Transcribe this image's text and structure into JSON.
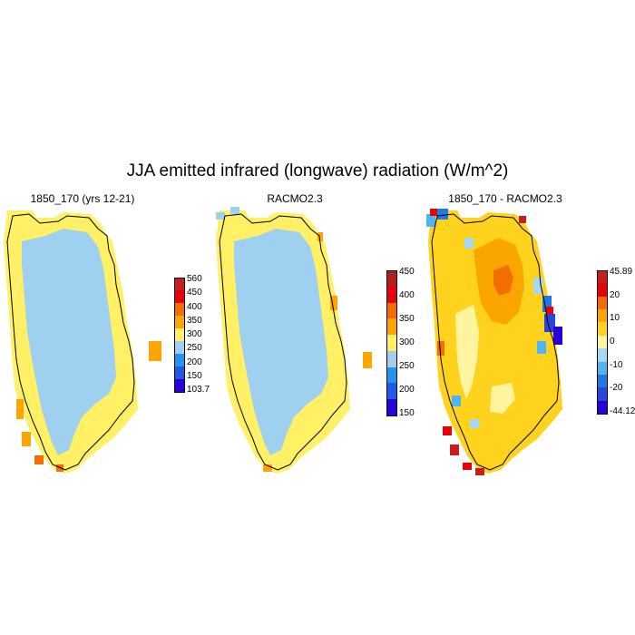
{
  "title": "JJA emitted infrared (longwave) radiation (W/m^2)",
  "panels": [
    {
      "title": "1850_170 (yrs 12-21)",
      "colorbar": {
        "labels": [
          "560",
          "450",
          "400",
          "350",
          "300",
          "250",
          "200",
          "150",
          "103.7"
        ],
        "colors": [
          "#c81e1e",
          "#e8000b",
          "#f46d00",
          "#faa500",
          "#fff066",
          "#9fd0f0",
          "#1e96f0",
          "#1e5ae6",
          "#2800dc"
        ]
      }
    },
    {
      "title": "RACMO2.3",
      "colorbar": {
        "labels": [
          "450",
          "400",
          "350",
          "300",
          "250",
          "200",
          "150"
        ],
        "colors": [
          "#b41e1e",
          "#e8000b",
          "#f46d00",
          "#faa500",
          "#fff066",
          "#9fd0f0",
          "#1e96f0",
          "#1e5ae6",
          "#2800dc"
        ]
      }
    },
    {
      "title": "1850_170 - RACMO2.3",
      "colorbar": {
        "labels": [
          "45.89",
          "20",
          "10",
          "0",
          "-10",
          "-20",
          "-44.12"
        ],
        "colors": [
          "#c81e1e",
          "#e8000b",
          "#f46d00",
          "#faa500",
          "#ffd21e",
          "#fff5a0",
          "#a5d8f5",
          "#50b4f0",
          "#1e78e6",
          "#2846dc",
          "#2800dc"
        ]
      }
    }
  ]
}
